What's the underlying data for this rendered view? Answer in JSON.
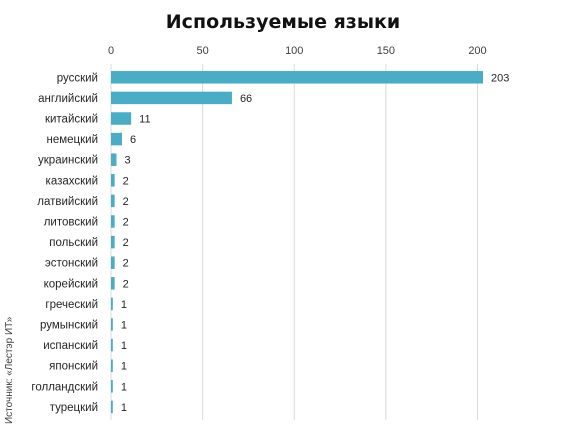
{
  "chart_data": {
    "type": "bar",
    "orientation": "horizontal",
    "title": "Используемые языки",
    "source": "Источник: «Лестэр ИТ»",
    "categories": [
      "русский",
      "английский",
      "китайский",
      "немецкий",
      "украинский",
      "казахский",
      "латвийский",
      "литовский",
      "польский",
      "эстонский",
      "корейский",
      "греческий",
      "румынский",
      "испанский",
      "японский",
      "голландский",
      "турецкий"
    ],
    "values": [
      203,
      66,
      11,
      6,
      3,
      2,
      2,
      2,
      2,
      2,
      2,
      1,
      1,
      1,
      1,
      1,
      1
    ],
    "xlim": [
      0,
      220
    ],
    "xticks": [
      0,
      50,
      100,
      150,
      200
    ],
    "xaxis_position": "top",
    "grid": "vertical",
    "legend": "none",
    "colors": {
      "bar": "#4BACC6",
      "grid": "#D9D9D9"
    }
  }
}
